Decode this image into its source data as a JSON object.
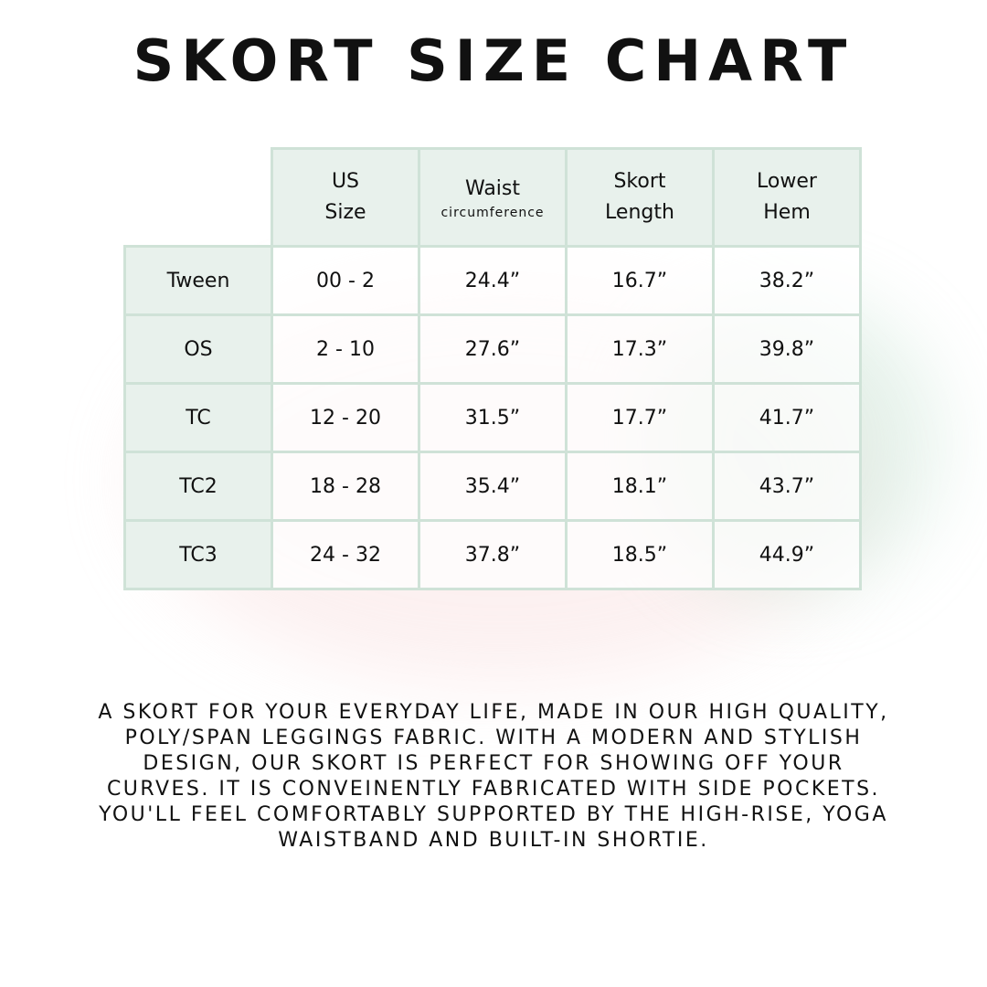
{
  "title": "SKORT SIZE CHART",
  "table": {
    "headers": [
      {
        "line1": "US",
        "line2": "Size"
      },
      {
        "line1": "Waist",
        "line2": "circumference"
      },
      {
        "line1": "Skort",
        "line2": "Length"
      },
      {
        "line1": "Lower",
        "line2": "Hem"
      }
    ],
    "rows": [
      {
        "label": "Tween",
        "us_size": "00 - 2",
        "waist": "24.4”",
        "length": "16.7”",
        "hem": "38.2”"
      },
      {
        "label": "OS",
        "us_size": "2 - 10",
        "waist": "27.6”",
        "length": "17.3”",
        "hem": "39.8”"
      },
      {
        "label": "TC",
        "us_size": "12 - 20",
        "waist": "31.5”",
        "length": "17.7”",
        "hem": "41.7”"
      },
      {
        "label": "TC2",
        "us_size": "18 - 28",
        "waist": "35.4”",
        "length": "18.1”",
        "hem": "43.7”"
      },
      {
        "label": "TC3",
        "us_size": "24 - 32",
        "waist": "37.8”",
        "length": "18.5”",
        "hem": "44.9”"
      }
    ]
  },
  "description": "A skort for your everyday life, made in our high quality, poly/span leggings fabric. With a modern and stylish design, our skort is perfect for showing off your curves. It is conveinently fabricated with side pockets. You'll feel comfortably supported by the high-rise, yoga waistband and built-in shortie.",
  "colors": {
    "border": "#cfe2d7",
    "header_fill": "#e8f1ec",
    "text": "#111111"
  }
}
